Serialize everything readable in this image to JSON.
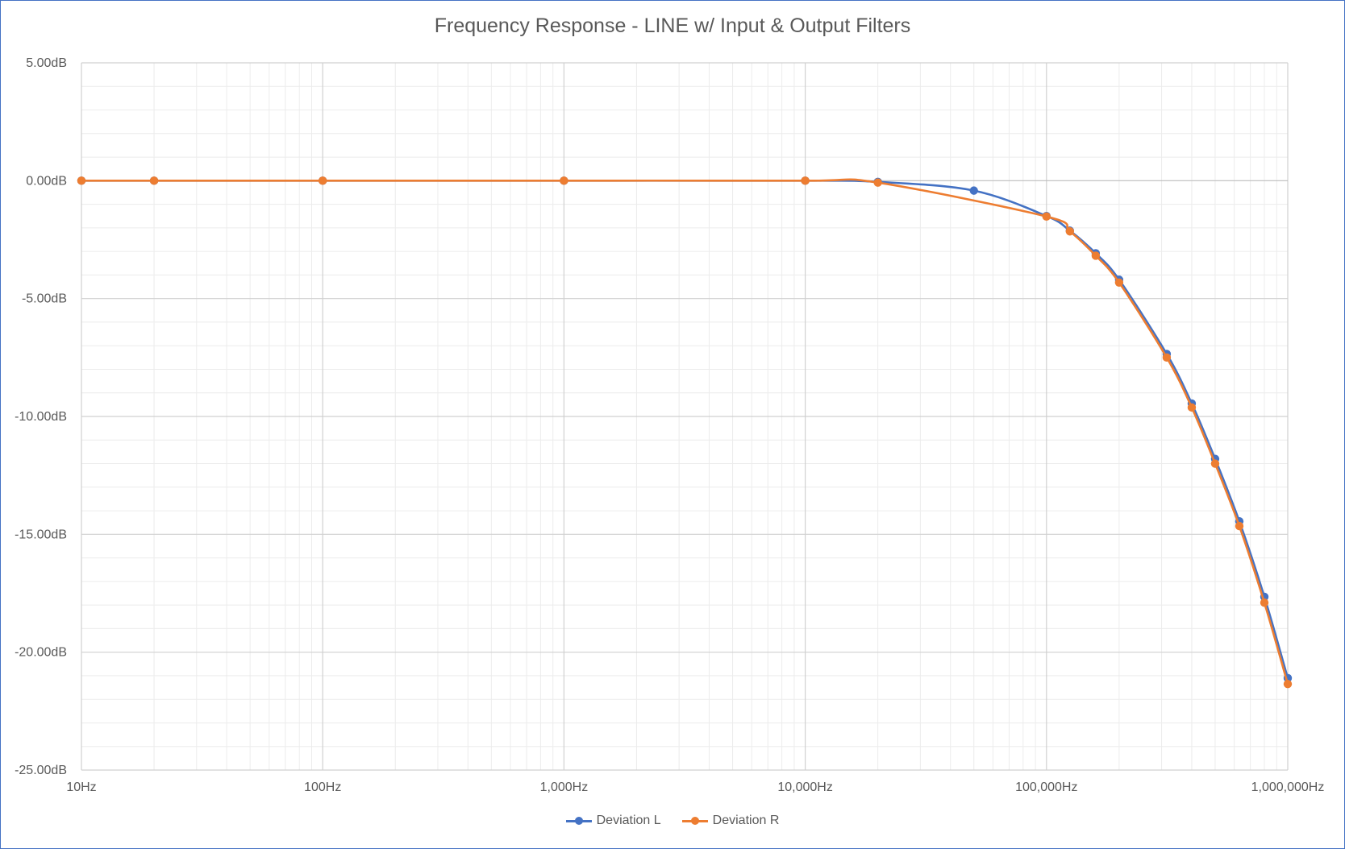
{
  "chart_data": {
    "type": "line",
    "title": "Frequency Response - LINE w/ Input & Output  Filters",
    "xlabel": "",
    "ylabel": "",
    "x_scale": "log",
    "xlim": [
      10,
      1000000
    ],
    "ylim": [
      -25,
      5
    ],
    "x_ticks": [
      10,
      100,
      1000,
      10000,
      100000,
      1000000
    ],
    "x_tick_labels": [
      "10Hz",
      "100Hz",
      "1,000Hz",
      "10,000Hz",
      "100,000Hz",
      "1,000,000Hz"
    ],
    "y_ticks": [
      5,
      0,
      -5,
      -10,
      -15,
      -20,
      -25
    ],
    "y_tick_labels": [
      "5.00dB",
      "0.00dB",
      "-5.00dB",
      "-10.00dB",
      "-15.00dB",
      "-20.00dB",
      "-25.00dB"
    ],
    "grid": true,
    "legend_position": "bottom",
    "series": [
      {
        "name": "Deviation L",
        "color": "#4472C4",
        "points": [
          [
            10,
            0
          ],
          [
            20,
            0
          ],
          [
            100,
            0
          ],
          [
            1000,
            0
          ],
          [
            10000,
            0
          ],
          [
            20000,
            -0.05
          ],
          [
            50000,
            -0.42
          ],
          [
            100000,
            -1.5
          ],
          [
            125000,
            -2.12
          ],
          [
            160000,
            -3.08
          ],
          [
            200000,
            -4.2
          ],
          [
            315000,
            -7.35
          ],
          [
            400000,
            -9.45
          ],
          [
            500000,
            -11.8
          ],
          [
            630000,
            -14.45
          ],
          [
            800000,
            -17.65
          ],
          [
            1000000,
            -21.1
          ]
        ]
      },
      {
        "name": "Deviation R",
        "color": "#ED7D31",
        "points": [
          [
            10,
            0
          ],
          [
            20,
            0
          ],
          [
            100,
            0
          ],
          [
            1000,
            0
          ],
          [
            10000,
            0
          ],
          [
            20000,
            -0.08
          ],
          [
            100000,
            -1.52
          ],
          [
            125000,
            -2.15
          ],
          [
            160000,
            -3.18
          ],
          [
            200000,
            -4.32
          ],
          [
            315000,
            -7.5
          ],
          [
            400000,
            -9.62
          ],
          [
            500000,
            -12.0
          ],
          [
            630000,
            -14.65
          ],
          [
            800000,
            -17.9
          ],
          [
            1000000,
            -21.35
          ]
        ]
      }
    ]
  }
}
